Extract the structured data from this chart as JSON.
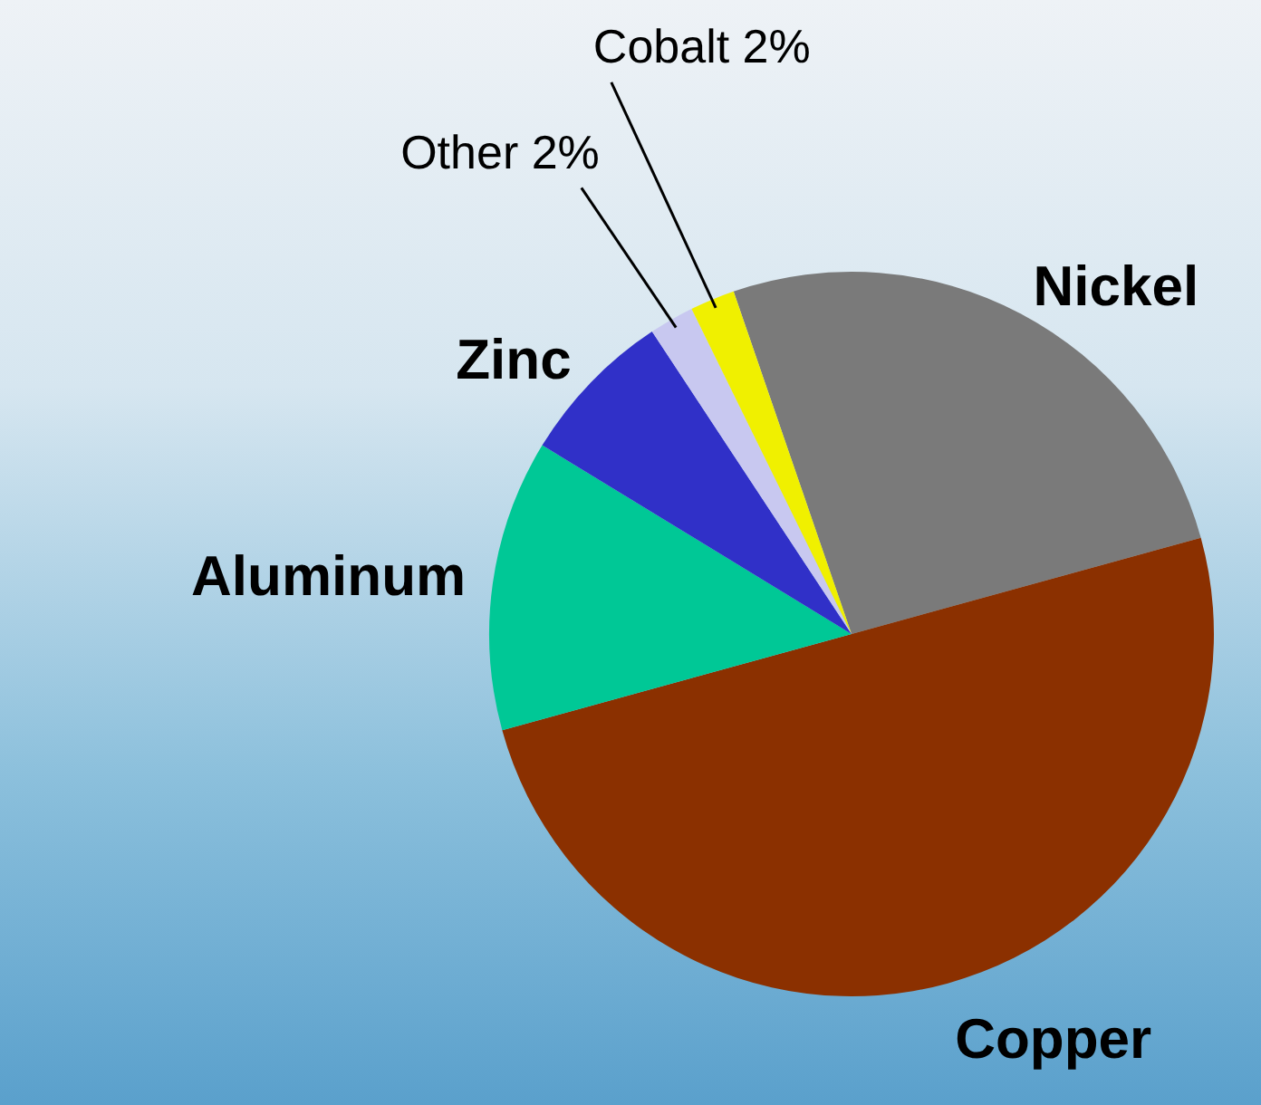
{
  "chart_data": {
    "type": "pie",
    "categories": [
      "Nickel",
      "Copper",
      "Aluminum",
      "Zinc",
      "Other",
      "Cobalt"
    ],
    "values": [
      26,
      50,
      13,
      7,
      2,
      2
    ],
    "colors": [
      "#7a7a7a",
      "#8b3000",
      "#00c896",
      "#3030c8",
      "#c8c8f0",
      "#f0f000"
    ],
    "value_labels": [
      null,
      null,
      null,
      null,
      "2%",
      "2%"
    ],
    "legend": false
  }
}
